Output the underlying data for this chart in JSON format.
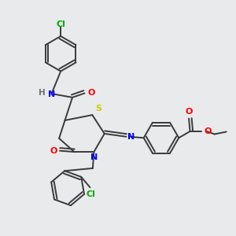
{
  "bg_color": "#e8eaec",
  "atom_colors": {
    "C": "#3a3a3a",
    "N": "#0000ff",
    "O": "#ff0000",
    "S": "#cccc00",
    "Cl": "#00aa00",
    "H": "#707070"
  },
  "bond_color": "#3a3a3a",
  "figsize": [
    3.0,
    3.0
  ],
  "dpi": 100
}
